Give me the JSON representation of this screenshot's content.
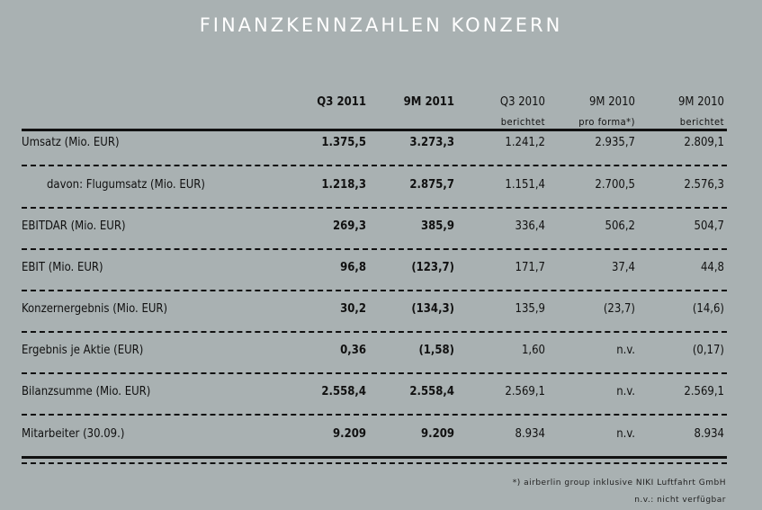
{
  "title": "FINANZKENNZAHLEN KONZERN",
  "columns": [
    {
      "label": "Q3 2011",
      "sub": "",
      "bold": true
    },
    {
      "label": "9M 2011",
      "sub": "",
      "bold": true
    },
    {
      "label": "Q3 2010",
      "sub": "berichtet",
      "bold": false
    },
    {
      "label": "9M 2010",
      "sub": "pro forma*)",
      "bold": false
    },
    {
      "label": "9M 2010",
      "sub": "berichtet",
      "bold": false
    }
  ],
  "rows": [
    {
      "label": "Umsatz (Mio. EUR)",
      "indent": false,
      "values": [
        "1.375,5",
        "3.273,3",
        "1.241,2",
        "2.935,7",
        "2.809,1"
      ]
    },
    {
      "label": "davon: Flugumsatz (Mio. EUR)",
      "indent": true,
      "values": [
        "1.218,3",
        "2.875,7",
        "1.151,4",
        "2.700,5",
        "2.576,3"
      ]
    },
    {
      "label": "EBITDAR (Mio. EUR)",
      "indent": false,
      "values": [
        "269,3",
        "385,9",
        "336,4",
        "506,2",
        "504,7"
      ]
    },
    {
      "label": "EBIT (Mio. EUR)",
      "indent": false,
      "values": [
        "96,8",
        "(123,7)",
        "171,7",
        "37,4",
        "44,8"
      ]
    },
    {
      "label": "Konzernergebnis (Mio. EUR)",
      "indent": false,
      "values": [
        "30,2",
        "(134,3)",
        "135,9",
        "(23,7)",
        "(14,6)"
      ]
    },
    {
      "label": "Ergebnis je Aktie (EUR)",
      "indent": false,
      "values": [
        "0,36",
        "(1,58)",
        "1,60",
        "n.v.",
        "(0,17)"
      ]
    },
    {
      "label": "Bilanzsumme (Mio. EUR)",
      "indent": false,
      "values": [
        "2.558,4",
        "2.558,4",
        "2.569,1",
        "n.v.",
        "2.569,1"
      ]
    },
    {
      "label": "Mitarbeiter (30.09.)",
      "indent": false,
      "values": [
        "9.209",
        "9.209",
        "8.934",
        "n.v.",
        "8.934"
      ]
    }
  ],
  "footnotes": [
    "*) airberlin group inklusive NIKI Luftfahrt GmbH",
    "n.v.: nicht verfügbar"
  ]
}
